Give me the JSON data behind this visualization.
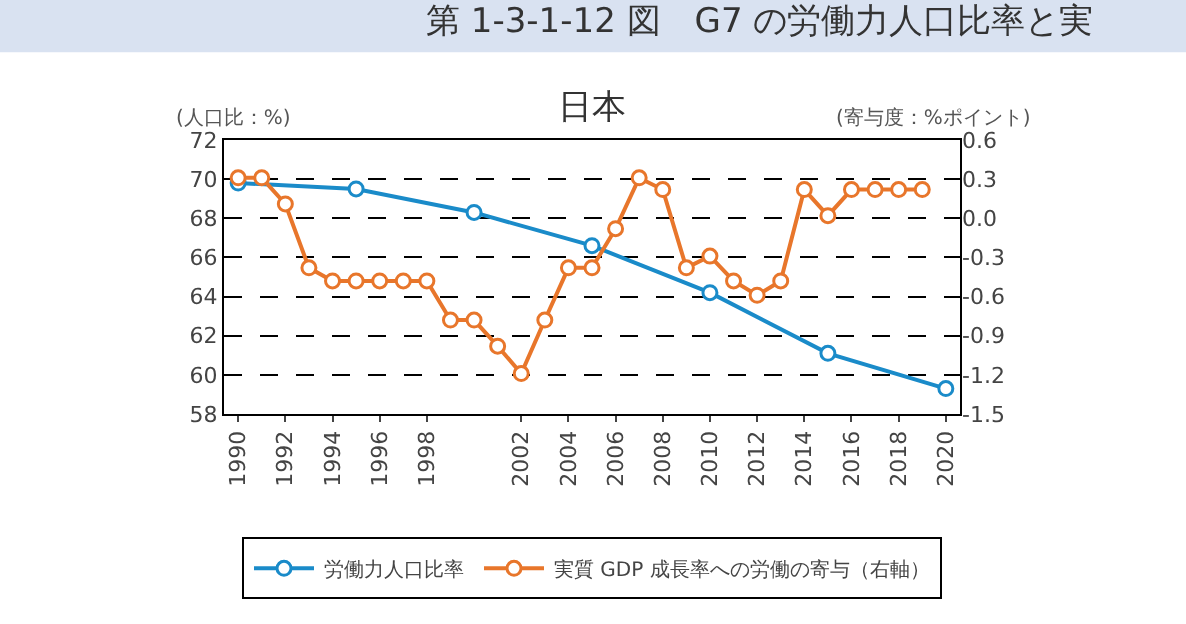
{
  "chart_data": {
    "type": "line",
    "title": "日本",
    "annotations": [
      "第 1-3-1-12 図　G7 の労働力人口比率と実"
    ],
    "ylabel": "(人口比：%)",
    "y2label": "(寄与度：%ポイント)",
    "xlim": [
      1989.4,
      2020.6
    ],
    "xticks": [
      1990,
      1992,
      1994,
      1996,
      1998,
      2002,
      2004,
      2006,
      2008,
      2010,
      2012,
      2014,
      2016,
      2018,
      2020
    ],
    "ylim": [
      58,
      72
    ],
    "yticks": [
      58,
      60,
      62,
      64,
      66,
      68,
      70,
      72
    ],
    "y2lim": [
      -1.5,
      0.6
    ],
    "y2ticks": [
      -1.5,
      -1.2,
      -0.9,
      -0.6,
      -0.3,
      {
        "value": 0,
        "label": "0.0"
      },
      0.3,
      0.6
    ],
    "grid": "y",
    "legend": "bottom",
    "marker": "circle",
    "line_style": "solid",
    "series": [
      {
        "name": "労働力人口比率",
        "color": "#1a8bc9",
        "x": [
          1990,
          1995,
          2000,
          2005,
          2010,
          2015,
          2020
        ],
        "values": [
          69.8,
          69.5,
          68.3,
          66.6,
          64.2,
          61.1,
          59.3
        ]
      },
      {
        "name": "実質 GDP 成長率への労働の寄与（右軸）",
        "color": "#e8762b",
        "axis": "y2",
        "x": [
          1990,
          1991,
          1992,
          1993,
          1994,
          1995,
          1996,
          1997,
          1998,
          1999,
          2000,
          2001,
          2002,
          2003,
          2004,
          2005,
          2006,
          2007,
          2008,
          2009,
          2010,
          2011,
          2012,
          2013,
          2014,
          2015,
          2016,
          2017,
          2018,
          2019
        ],
        "values": [
          0.31,
          0.31,
          0.11,
          -0.38,
          -0.48,
          -0.48,
          -0.48,
          -0.48,
          -0.48,
          -0.78,
          -0.78,
          -0.98,
          -1.19,
          -0.78,
          -0.38,
          -0.38,
          -0.08,
          0.31,
          0.22,
          -0.38,
          -0.29,
          -0.48,
          -0.59,
          -0.48,
          0.22,
          0.02,
          0.22,
          0.22,
          0.22,
          0.22
        ]
      }
    ]
  }
}
